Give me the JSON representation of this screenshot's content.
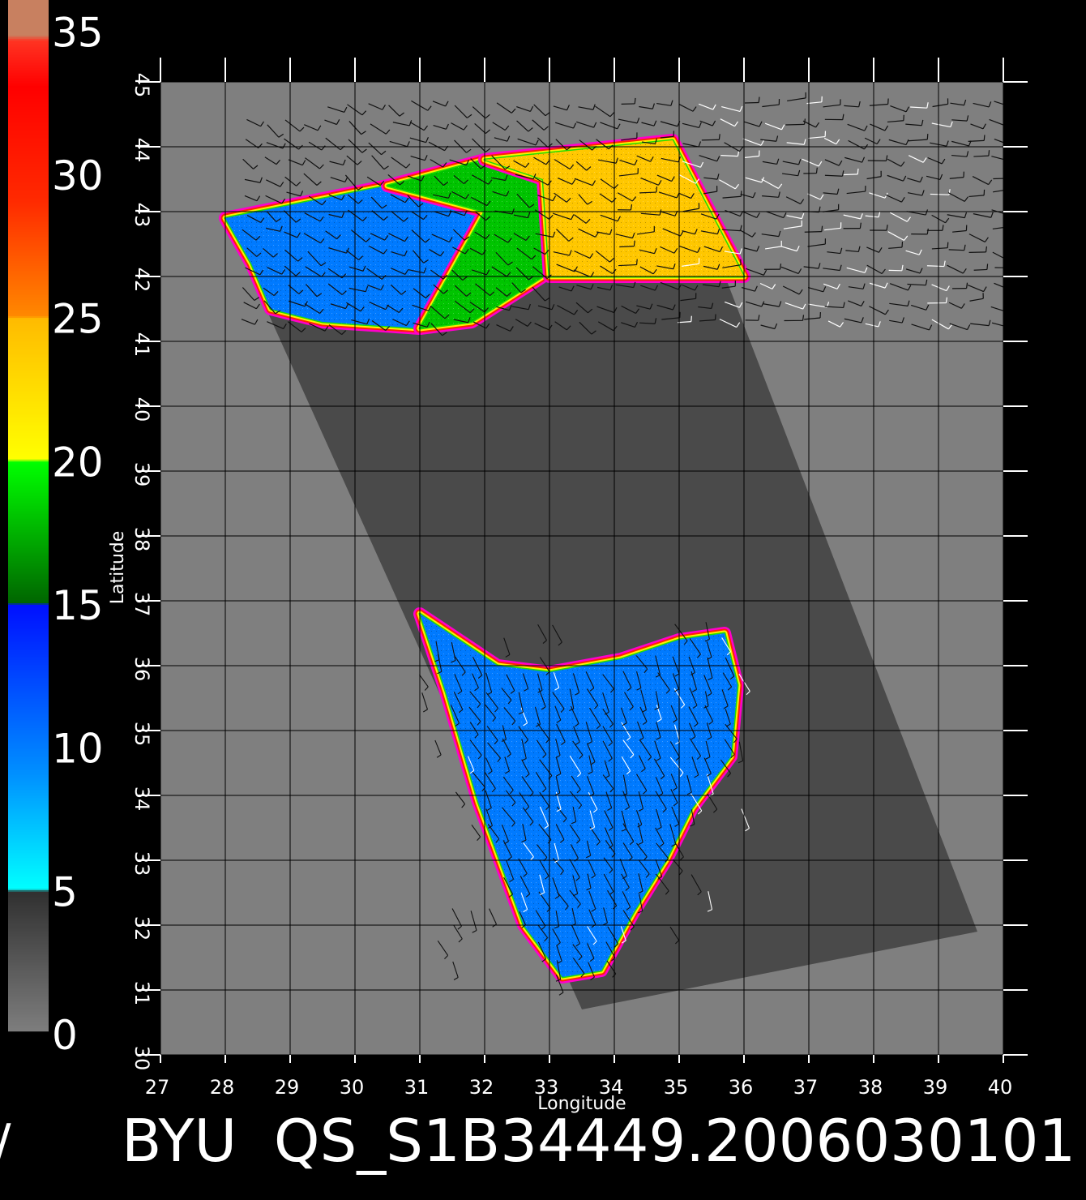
{
  "colorbar": {
    "ticks": [
      {
        "value": 0,
        "label": "0"
      },
      {
        "value": 5,
        "label": "5"
      },
      {
        "value": 10,
        "label": "10"
      },
      {
        "value": 15,
        "label": "15"
      },
      {
        "value": 20,
        "label": "20"
      },
      {
        "value": 25,
        "label": "25"
      },
      {
        "value": 30,
        "label": "30"
      },
      {
        "value": 35,
        "label": "35"
      }
    ],
    "range": [
      0,
      36
    ],
    "stops": [
      {
        "v": 0,
        "color": "#7e7e7e"
      },
      {
        "v": 4.9,
        "color": "#303030"
      },
      {
        "v": 5.0,
        "color": "#00ffff"
      },
      {
        "v": 9.0,
        "color": "#0090ff"
      },
      {
        "v": 14.9,
        "color": "#0010ff"
      },
      {
        "v": 15.0,
        "color": "#006600"
      },
      {
        "v": 19.9,
        "color": "#00ff00"
      },
      {
        "v": 20.0,
        "color": "#ffff00"
      },
      {
        "v": 24.9,
        "color": "#ffbb00"
      },
      {
        "v": 25.0,
        "color": "#ff8800"
      },
      {
        "v": 29.0,
        "color": "#ff2a00"
      },
      {
        "v": 33.0,
        "color": "#ff0000"
      },
      {
        "v": 34.6,
        "color": "#ff3322"
      },
      {
        "v": 34.8,
        "color": "#c88060"
      },
      {
        "v": 36.0,
        "color": "#c88060"
      }
    ]
  },
  "map": {
    "xlabel": "Longitude",
    "ylabel": "Latitude",
    "xlim": [
      27,
      40
    ],
    "ylim": [
      30,
      45
    ],
    "xticks": [
      "27",
      "28",
      "29",
      "30",
      "31",
      "32",
      "33",
      "34",
      "35",
      "36",
      "37",
      "38",
      "39",
      "40"
    ],
    "yticks": [
      "30",
      "31",
      "32",
      "33",
      "34",
      "35",
      "36",
      "37",
      "38",
      "39",
      "40",
      "41",
      "42",
      "43",
      "44",
      "45"
    ],
    "colors": {
      "background": "#7f7f7f",
      "swath": "#4a4a4a",
      "grid": "#000000",
      "frame": "#ffffff"
    }
  },
  "chart_data": {
    "type": "heatmap",
    "xlabel": "Longitude",
    "ylabel": "Latitude",
    "xlim": [
      27,
      40
    ],
    "ylim": [
      30,
      45
    ],
    "colorbar_range": [
      0,
      35
    ],
    "swath_corners": [
      [
        28.0,
        42.9
      ],
      [
        34.9,
        44.1
      ],
      [
        39.6,
        31.9
      ],
      [
        33.5,
        30.7
      ]
    ],
    "regions": [
      {
        "feature": "black-sea-west",
        "value": 10,
        "outline": [
          [
            28.0,
            42.9
          ],
          [
            30.5,
            43.4
          ],
          [
            32.0,
            43.0
          ],
          [
            33.2,
            42.2
          ],
          [
            31.0,
            41.2
          ],
          [
            29.5,
            41.3
          ],
          [
            28.7,
            41.5
          ],
          [
            28.4,
            42.2
          ]
        ]
      },
      {
        "feature": "black-sea-central",
        "value": 18,
        "outline": [
          [
            30.5,
            43.4
          ],
          [
            32.0,
            43.8
          ],
          [
            32.9,
            43.5
          ],
          [
            32.9,
            42.0
          ],
          [
            31.8,
            41.3
          ],
          [
            31.0,
            41.2
          ],
          [
            32.0,
            43.0
          ]
        ]
      },
      {
        "feature": "black-sea-east",
        "value": 24,
        "outline": [
          [
            32.0,
            43.8
          ],
          [
            34.9,
            44.1
          ],
          [
            36.0,
            42.0
          ],
          [
            35.2,
            42.0
          ],
          [
            33.0,
            42.0
          ],
          [
            32.9,
            43.5
          ]
        ]
      },
      {
        "feature": "mediterranean",
        "value": 10,
        "outline": [
          [
            31.0,
            36.8
          ],
          [
            32.2,
            36.0
          ],
          [
            33.0,
            35.9
          ],
          [
            34.1,
            36.1
          ],
          [
            35.0,
            36.4
          ],
          [
            35.7,
            36.5
          ],
          [
            35.9,
            35.7
          ],
          [
            35.8,
            34.6
          ],
          [
            35.2,
            33.8
          ],
          [
            34.8,
            33.0
          ],
          [
            34.3,
            32.2
          ],
          [
            33.8,
            31.3
          ],
          [
            33.2,
            31.2
          ],
          [
            32.6,
            32.0
          ],
          [
            31.9,
            33.9
          ],
          [
            31.4,
            35.6
          ]
        ]
      }
    ],
    "wind_vectors": "field of small arrow barbs over swath"
  },
  "footer": {
    "left_glyph": "/",
    "title": "BYU  QS_S1B34449.2006030101"
  }
}
